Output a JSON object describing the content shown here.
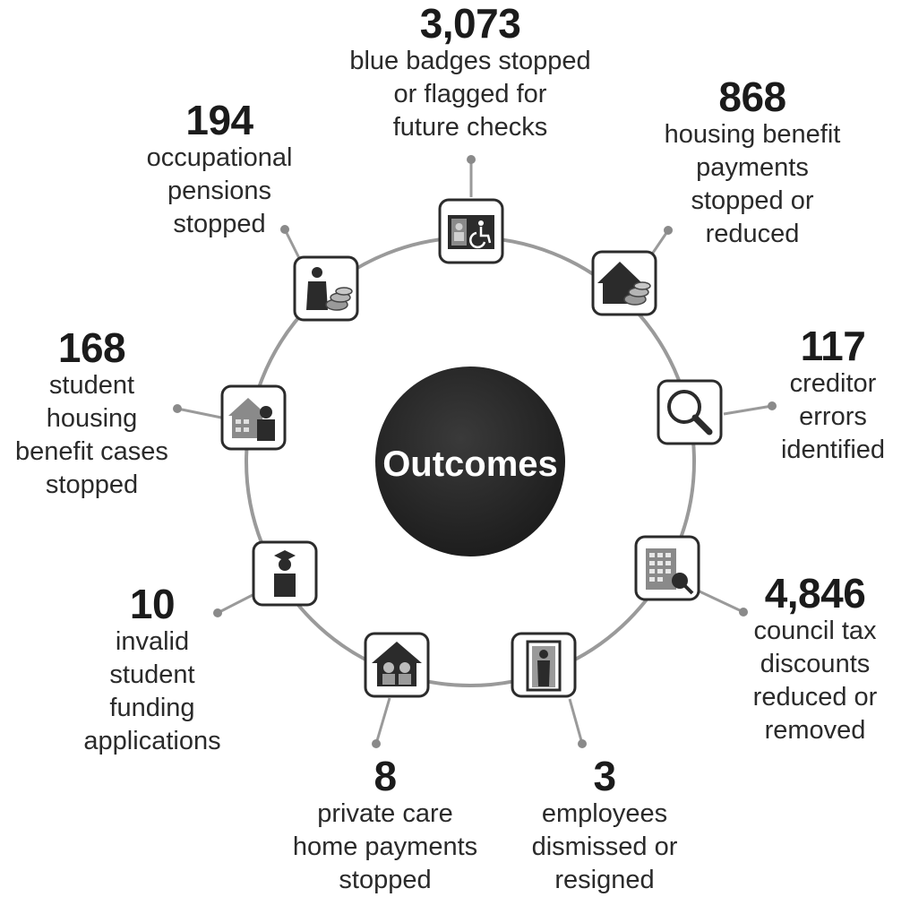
{
  "center": {
    "title": "Outcomes"
  },
  "outcomes": [
    {
      "value": "3,073",
      "description": [
        "blue badges stopped",
        "or flagged for",
        "future checks"
      ],
      "icon": "blue-badge-icon"
    },
    {
      "value": "868",
      "description": [
        "housing benefit",
        "payments",
        "stopped or",
        "reduced"
      ],
      "icon": "house-money-icon"
    },
    {
      "value": "117",
      "description": [
        "creditor",
        "errors",
        "identified"
      ],
      "icon": "magnifier-icon"
    },
    {
      "value": "4,846",
      "description": [
        "council tax",
        "discounts",
        "reduced or",
        "removed"
      ],
      "icon": "building-icon"
    },
    {
      "value": "3",
      "description": [
        "employees",
        "dismissed or",
        "resigned"
      ],
      "icon": "employee-door-icon"
    },
    {
      "value": "8",
      "description": [
        "private care",
        "home payments",
        "stopped"
      ],
      "icon": "care-home-icon"
    },
    {
      "value": "10",
      "description": [
        "invalid",
        "student",
        "funding",
        "applications"
      ],
      "icon": "graduate-icon"
    },
    {
      "value": "168",
      "description": [
        "student",
        "housing",
        "benefit cases",
        "stopped"
      ],
      "icon": "student-house-icon"
    },
    {
      "value": "194",
      "description": [
        "occupational",
        "pensions",
        "stopped"
      ],
      "icon": "pensioner-money-icon"
    }
  ],
  "colors": {
    "ring": "#9a9a9a",
    "center": "#262626",
    "icon_dark": "#2b2b2b",
    "icon_grey": "#7a7a7a"
  }
}
